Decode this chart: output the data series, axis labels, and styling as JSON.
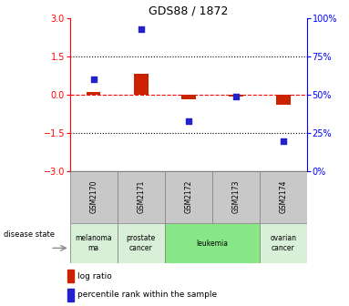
{
  "title": "GDS88 / 1872",
  "samples": [
    "GSM2170",
    "GSM2171",
    "GSM2172",
    "GSM2173",
    "GSM2174"
  ],
  "log_ratio": [
    0.1,
    0.82,
    -0.18,
    -0.05,
    -0.38
  ],
  "percentile": [
    60,
    93,
    33,
    49,
    20
  ],
  "disease_state": [
    "melanoma",
    "prostate cancer",
    "leukemia",
    "leukemia",
    "ovarian cancer"
  ],
  "bar_color": "#cc2200",
  "point_color": "#2222cc",
  "ylim_left": [
    -3,
    3
  ],
  "ylim_right": [
    0,
    100
  ],
  "yticks_left": [
    -3,
    -1.5,
    0,
    1.5,
    3
  ],
  "yticks_right": [
    0,
    25,
    50,
    75,
    100
  ],
  "ytick_labels_right": [
    "0%",
    "25%",
    "50%",
    "75%",
    "100%"
  ],
  "dotted_lines": [
    1.5,
    -1.5
  ],
  "disease_label_map": {
    "melanoma": "melanoma\nma",
    "prostate cancer": "prostate\ncancer",
    "leukemia": "leukemia",
    "ovarian cancer": "ovarian\ncancer"
  },
  "disease_state_colors": {
    "melanoma": "#d8f0d8",
    "prostate cancer": "#d8f0d8",
    "leukemia": "#88e888",
    "ovarian cancer": "#d8f0d8"
  },
  "sample_box_color": "#c8c8c8",
  "bar_width": 0.3
}
